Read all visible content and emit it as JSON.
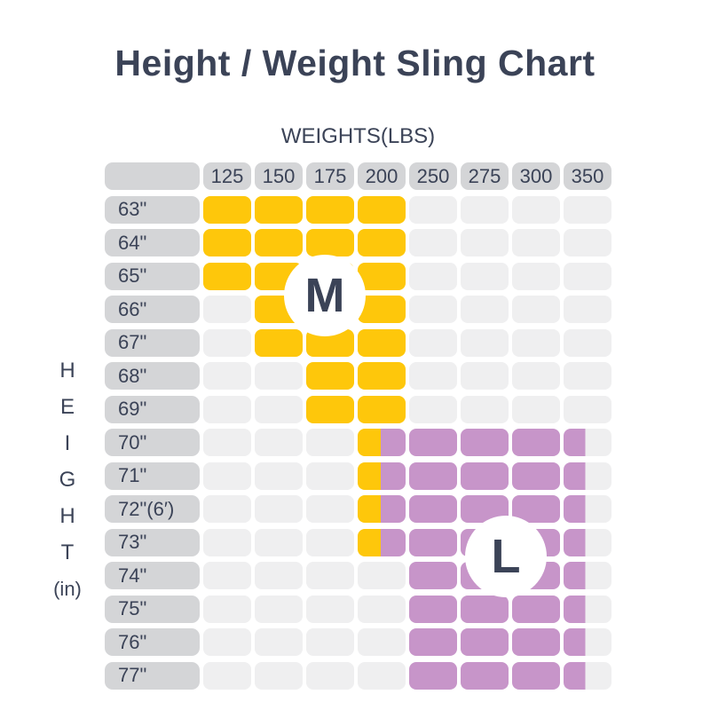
{
  "header": {
    "title": "Height / Weight Sling Chart"
  },
  "axes": {
    "weights_label": "WEIGHTS(LBS)",
    "height_letters": [
      "H",
      "E",
      "I",
      "G",
      "H",
      "T"
    ],
    "height_unit": "(in)"
  },
  "size_markers": {
    "medium": "M",
    "large": "L"
  },
  "colors": {
    "size_m": "#FEC70B",
    "size_l": "#C795C9",
    "header_bg": "#D4D5D7",
    "empty_cell": "#EFEFF0",
    "text": "#3B4357",
    "background": "#FFFFFF"
  },
  "chart_data": {
    "type": "heatmap",
    "title": "Height / Weight Sling Chart",
    "x_axis_label": "WEIGHTS(LBS)",
    "y_axis_label": "HEIGHT (in)",
    "columns": [
      "125",
      "150",
      "175",
      "200",
      "250",
      "275",
      "300",
      "350"
    ],
    "rows": [
      {
        "height": "63\"",
        "cells": [
          "M",
          "M",
          "M",
          "M",
          "",
          "",
          "",
          ""
        ]
      },
      {
        "height": "64\"",
        "cells": [
          "M",
          "M",
          "M",
          "M",
          "",
          "",
          "",
          ""
        ]
      },
      {
        "height": "65\"",
        "cells": [
          "M",
          "M",
          "M",
          "M",
          "",
          "",
          "",
          ""
        ]
      },
      {
        "height": "66\"",
        "cells": [
          "",
          "M",
          "M",
          "M",
          "",
          "",
          "",
          ""
        ]
      },
      {
        "height": "67\"",
        "cells": [
          "",
          "M",
          "M",
          "M",
          "",
          "",
          "",
          ""
        ]
      },
      {
        "height": "68\"",
        "cells": [
          "",
          "",
          "M",
          "M",
          "",
          "",
          "",
          ""
        ]
      },
      {
        "height": "69\"",
        "cells": [
          "",
          "",
          "M",
          "M",
          "",
          "",
          "",
          ""
        ]
      },
      {
        "height": "70\"",
        "cells": [
          "",
          "",
          "",
          "M|L",
          "L",
          "L",
          "L",
          "L|"
        ]
      },
      {
        "height": "71\"",
        "cells": [
          "",
          "",
          "",
          "M|L",
          "L",
          "L",
          "L",
          "L|"
        ]
      },
      {
        "height": "72\"(6′)",
        "cells": [
          "",
          "",
          "",
          "M|L",
          "L",
          "L",
          "L",
          "L|"
        ]
      },
      {
        "height": "73\"",
        "cells": [
          "",
          "",
          "",
          "M|L",
          "L",
          "L",
          "L",
          "L|"
        ]
      },
      {
        "height": "74\"",
        "cells": [
          "",
          "",
          "",
          "",
          "L",
          "L",
          "L",
          "L|"
        ]
      },
      {
        "height": "75\"",
        "cells": [
          "",
          "",
          "",
          "",
          "L",
          "L",
          "L",
          "L|"
        ]
      },
      {
        "height": "76\"",
        "cells": [
          "",
          "",
          "",
          "",
          "L",
          "L",
          "L",
          "L|"
        ]
      },
      {
        "height": "77\"",
        "cells": [
          "",
          "",
          "",
          "",
          "L",
          "L",
          "L",
          "L|"
        ]
      }
    ],
    "legend": [
      {
        "code": "M",
        "label": "M",
        "color": "#FEC70B"
      },
      {
        "code": "L",
        "label": "L",
        "color": "#C795C9"
      },
      {
        "code": "M|L",
        "label": "left half M / right half L",
        "color": "#FEC70B|#C795C9"
      },
      {
        "code": "L|",
        "label": "left half L / right half empty",
        "color": "#C795C9|#EFEFF0"
      }
    ]
  }
}
